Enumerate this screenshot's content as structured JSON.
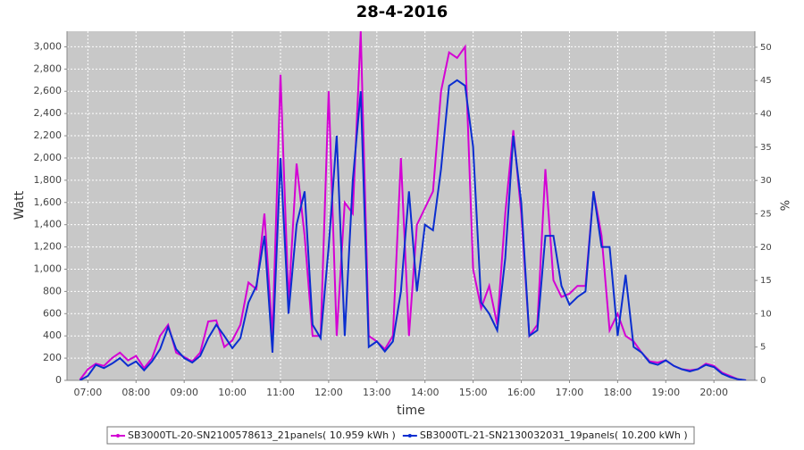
{
  "chart_data": {
    "type": "line",
    "title": "28-4-2016",
    "xlabel": "time",
    "ylabel": "Watt",
    "y2label": "%",
    "x": [
      "06:50",
      "07:00",
      "07:10",
      "07:20",
      "07:30",
      "07:40",
      "07:50",
      "08:00",
      "08:10",
      "08:20",
      "08:30",
      "08:40",
      "08:50",
      "09:00",
      "09:10",
      "09:20",
      "09:30",
      "09:40",
      "09:50",
      "10:00",
      "10:10",
      "10:20",
      "10:30",
      "10:40",
      "10:50",
      "11:00",
      "11:10",
      "11:20",
      "11:30",
      "11:40",
      "11:50",
      "12:00",
      "12:10",
      "12:20",
      "12:30",
      "12:40",
      "12:50",
      "13:00",
      "13:10",
      "13:20",
      "13:30",
      "13:40",
      "13:50",
      "14:00",
      "14:10",
      "14:20",
      "14:30",
      "14:40",
      "14:50",
      "15:00",
      "15:10",
      "15:20",
      "15:30",
      "15:40",
      "15:50",
      "16:00",
      "16:10",
      "16:20",
      "16:30",
      "16:40",
      "16:50",
      "17:00",
      "17:10",
      "17:20",
      "17:30",
      "17:40",
      "17:50",
      "18:00",
      "18:10",
      "18:20",
      "18:30",
      "18:40",
      "18:50",
      "19:00",
      "19:10",
      "19:20",
      "19:30",
      "19:40",
      "19:50",
      "20:00",
      "20:10",
      "20:20",
      "20:30",
      "20:40"
    ],
    "series": [
      {
        "name": "SB3000TL-20-SN2100578613_21panels( 10.959 kWh )",
        "color": "#d400d4",
        "values": [
          5,
          100,
          150,
          130,
          200,
          250,
          180,
          220,
          110,
          200,
          400,
          500,
          250,
          210,
          170,
          250,
          530,
          540,
          300,
          360,
          500,
          880,
          820,
          1500,
          400,
          2750,
          700,
          1950,
          1300,
          400,
          400,
          2600,
          400,
          1600,
          1500,
          3140,
          400,
          350,
          280,
          400,
          2000,
          400,
          1400,
          1550,
          1700,
          2600,
          2950,
          2900,
          3000,
          1000,
          650,
          850,
          500,
          1500,
          2250,
          1500,
          400,
          500,
          1900,
          900,
          750,
          780,
          850,
          850,
          1700,
          1300,
          450,
          600,
          400,
          350,
          250,
          170,
          160,
          180,
          130,
          100,
          90,
          100,
          150,
          130,
          70,
          40,
          10,
          0
        ]
      },
      {
        "name": "SB3000TL-21-SN2130032031_19panels( 10.200 kWh )",
        "color": "#0a2ed0",
        "values": [
          0,
          40,
          140,
          110,
          150,
          200,
          130,
          170,
          90,
          170,
          280,
          480,
          280,
          200,
          160,
          220,
          380,
          500,
          400,
          290,
          380,
          700,
          850,
          1300,
          250,
          2000,
          600,
          1400,
          1700,
          500,
          380,
          1200,
          2200,
          400,
          1800,
          2600,
          300,
          350,
          260,
          350,
          800,
          1700,
          800,
          1400,
          1350,
          1900,
          2650,
          2700,
          2650,
          2100,
          700,
          600,
          450,
          1100,
          2200,
          1600,
          400,
          450,
          1300,
          1300,
          850,
          680,
          750,
          800,
          1700,
          1200,
          1200,
          400,
          950,
          300,
          250,
          160,
          140,
          180,
          130,
          100,
          80,
          100,
          140,
          120,
          60,
          30,
          10,
          0
        ]
      }
    ],
    "xlim": [
      "06:34",
      "20:51"
    ],
    "xticks": [
      "07:00",
      "08:00",
      "09:00",
      "10:00",
      "11:00",
      "12:00",
      "13:00",
      "14:00",
      "15:00",
      "16:00",
      "17:00",
      "18:00",
      "19:00",
      "20:00"
    ],
    "ylim": [
      0,
      3140
    ],
    "yticks": [
      0,
      200,
      400,
      600,
      800,
      {
        "value": 1000,
        "label": "1,000"
      },
      {
        "value": 1200,
        "label": "1,200"
      },
      {
        "value": 1400,
        "label": "1,400"
      },
      {
        "value": 1600,
        "label": "1,600"
      },
      {
        "value": 1800,
        "label": "1,800"
      },
      {
        "value": 2000,
        "label": "2,000"
      },
      {
        "value": 2200,
        "label": "2,200"
      },
      {
        "value": 2400,
        "label": "2,400"
      },
      {
        "value": 2600,
        "label": "2,600"
      },
      {
        "value": 2800,
        "label": "2,800"
      },
      {
        "value": 3000,
        "label": "3,000"
      }
    ],
    "y2lim": [
      0,
      52.4
    ],
    "y2ticks": [
      0,
      5,
      10,
      15,
      20,
      25,
      30,
      35,
      40,
      45,
      50
    ],
    "grid": true
  }
}
